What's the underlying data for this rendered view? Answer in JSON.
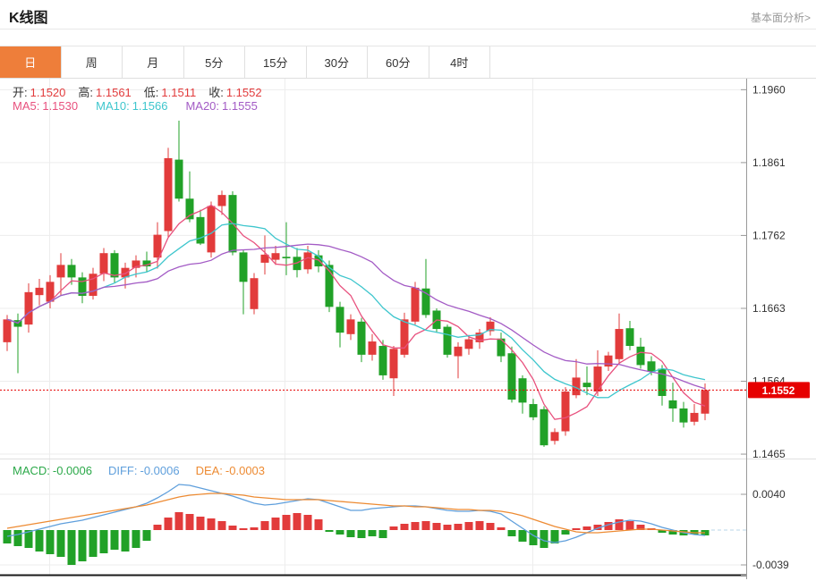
{
  "header": {
    "title": "K线图",
    "link": "基本面分析>"
  },
  "tabs": {
    "items": [
      "日",
      "周",
      "月",
      "5分",
      "15分",
      "30分",
      "60分",
      "4时"
    ],
    "active_index": 0
  },
  "legend": {
    "ohlc": {
      "pairs": [
        {
          "label": "开:",
          "value": "1.1520"
        },
        {
          "label": "高:",
          "value": "1.1561"
        },
        {
          "label": "低:",
          "value": "1.1511"
        },
        {
          "label": "收:",
          "value": "1.1552"
        }
      ]
    },
    "ma": {
      "items": [
        {
          "label": "MA5:",
          "value": "1.1530",
          "color": "#e8517e"
        },
        {
          "label": "MA10:",
          "value": "1.1566",
          "color": "#3ec6cd"
        },
        {
          "label": "MA20:",
          "value": "1.1555",
          "color": "#a35bc5"
        }
      ]
    },
    "macd": {
      "items": [
        {
          "label": "MACD:",
          "value": "-0.0006",
          "color": "#2ca94a"
        },
        {
          "label": "DIFF:",
          "value": "-0.0006",
          "color": "#5f9fdc"
        },
        {
          "label": "DEA:",
          "value": "-0.0003",
          "color": "#ed8b33"
        }
      ]
    }
  },
  "price_axis": {
    "ticks": [
      "1.1960",
      "1.1861",
      "1.1762",
      "1.1663",
      "1.1564",
      "1.1465"
    ],
    "current": "1.1552"
  },
  "macd_axis": {
    "ticks": [
      "0.0040",
      "-0.0039"
    ]
  },
  "colors": {
    "up": "#e23b3b",
    "down": "#21a127",
    "ma5": "#e8517e",
    "ma10": "#3ec6cd",
    "ma20": "#a35bc5",
    "diff": "#5f9fdc",
    "dea": "#ed8b33",
    "accent_tab": "#ee7e3a",
    "price_tag": "#e60000",
    "grid": "#ededed",
    "axis": "#999999",
    "tick_text": "#333333",
    "current_line": "#e60000",
    "zero_dash": "#b9d4ea",
    "bottom_line": "#1a1a1a",
    "ohlc_value": "#e23b3c"
  },
  "chart_data": [
    {
      "type": "candlestick",
      "title": "K线图 (日)",
      "ylim": [
        1.1459,
        1.1975
      ],
      "yticks": [
        1.196,
        1.1861,
        1.1762,
        1.1663,
        1.1564,
        1.1465
      ],
      "current_price": 1.1552,
      "grid": true,
      "ohlc_format": [
        "open",
        "high",
        "low",
        "close"
      ],
      "candles": [
        [
          1.1617,
          1.1654,
          1.1605,
          1.1648
        ],
        [
          1.1647,
          1.1656,
          1.1575,
          1.1638
        ],
        [
          1.1641,
          1.1697,
          1.163,
          1.1685
        ],
        [
          1.1681,
          1.1703,
          1.1667,
          1.1691
        ],
        [
          1.1672,
          1.1708,
          1.1663,
          1.1699
        ],
        [
          1.1705,
          1.1738,
          1.168,
          1.1722
        ],
        [
          1.1722,
          1.173,
          1.1695,
          1.1705
        ],
        [
          1.1705,
          1.1712,
          1.167,
          1.168
        ],
        [
          1.168,
          1.1718,
          1.1675,
          1.171
        ],
        [
          1.171,
          1.1745,
          1.17,
          1.1738
        ],
        [
          1.1738,
          1.1742,
          1.1698,
          1.1705
        ],
        [
          1.1705,
          1.1725,
          1.169,
          1.1718
        ],
        [
          1.1718,
          1.1735,
          1.1705,
          1.1728
        ],
        [
          1.1728,
          1.174,
          1.1712,
          1.172
        ],
        [
          1.1732,
          1.178,
          1.1717,
          1.1763
        ],
        [
          1.1768,
          1.1881,
          1.176,
          1.1867
        ],
        [
          1.1865,
          1.1918,
          1.1808,
          1.1812
        ],
        [
          1.1812,
          1.1849,
          1.178,
          1.1784
        ],
        [
          1.1787,
          1.1797,
          1.1749,
          1.1751
        ],
        [
          1.1739,
          1.1808,
          1.1732,
          1.1802
        ],
        [
          1.1802,
          1.1823,
          1.179,
          1.1817
        ],
        [
          1.1817,
          1.1822,
          1.1735,
          1.1739
        ],
        [
          1.1739,
          1.1742,
          1.1655,
          1.1699
        ],
        [
          1.1662,
          1.1711,
          1.1655,
          1.1704
        ],
        [
          1.1725,
          1.1762,
          1.1709,
          1.1736
        ],
        [
          1.1729,
          1.1748,
          1.1722,
          1.1738
        ],
        [
          1.1733,
          1.178,
          1.1708,
          1.1731
        ],
        [
          1.1733,
          1.1745,
          1.1705,
          1.1715
        ],
        [
          1.1716,
          1.1748,
          1.171,
          1.1739
        ],
        [
          1.1735,
          1.1742,
          1.1712,
          1.172
        ],
        [
          1.1722,
          1.1728,
          1.1658,
          1.1665
        ],
        [
          1.1665,
          1.1672,
          1.161,
          1.163
        ],
        [
          1.1628,
          1.1655,
          1.162,
          1.1648
        ],
        [
          1.1645,
          1.165,
          1.159,
          1.16
        ],
        [
          1.16,
          1.1628,
          1.1592,
          1.1618
        ],
        [
          1.1612,
          1.162,
          1.1566,
          1.1572
        ],
        [
          1.1568,
          1.1612,
          1.1544,
          1.1608
        ],
        [
          1.16,
          1.1657,
          1.1596,
          1.1648
        ],
        [
          1.1645,
          1.1699,
          1.1641,
          1.1691
        ],
        [
          1.169,
          1.173,
          1.165,
          1.1654
        ],
        [
          1.166,
          1.1663,
          1.163,
          1.1635
        ],
        [
          1.1638,
          1.1641,
          1.1596,
          1.16
        ],
        [
          1.1598,
          1.1617,
          1.1568,
          1.1611
        ],
        [
          1.1608,
          1.1627,
          1.16,
          1.1621
        ],
        [
          1.1617,
          1.1635,
          1.1608,
          1.163
        ],
        [
          1.1632,
          1.1651,
          1.1626,
          1.1645
        ],
        [
          1.1622,
          1.163,
          1.159,
          1.1598
        ],
        [
          1.1602,
          1.1611,
          1.1535,
          1.1539
        ],
        [
          1.1568,
          1.1572,
          1.152,
          1.1535
        ],
        [
          1.1533,
          1.154,
          1.1511,
          1.1515
        ],
        [
          1.1526,
          1.153,
          1.1475,
          1.1477
        ],
        [
          1.1483,
          1.15,
          1.1478,
          1.1495
        ],
        [
          1.1496,
          1.1556,
          1.149,
          1.155
        ],
        [
          1.1545,
          1.1594,
          1.1541,
          1.1569
        ],
        [
          1.1562,
          1.1584,
          1.1545,
          1.1556
        ],
        [
          1.155,
          1.1606,
          1.1544,
          1.1584
        ],
        [
          1.1584,
          1.1604,
          1.1578,
          1.1599
        ],
        [
          1.1594,
          1.1656,
          1.1588,
          1.1635
        ],
        [
          1.1636,
          1.1646,
          1.1606,
          1.1612
        ],
        [
          1.1611,
          1.1623,
          1.1581,
          1.1586
        ],
        [
          1.1591,
          1.1598,
          1.1572,
          1.1577
        ],
        [
          1.1581,
          1.1586,
          1.1531,
          1.1544
        ],
        [
          1.1538,
          1.1562,
          1.1509,
          1.1527
        ],
        [
          1.1527,
          1.1536,
          1.1501,
          1.1508
        ],
        [
          1.1509,
          1.1533,
          1.1504,
          1.1521
        ],
        [
          1.152,
          1.1561,
          1.1511,
          1.1552
        ]
      ],
      "ma_windows": [
        5,
        10,
        20
      ]
    },
    {
      "type": "bar+line",
      "name": "MACD",
      "yticks": [
        0.004,
        -0.0039
      ],
      "histogram": [
        -0.0015,
        -0.0018,
        -0.002,
        -0.0024,
        -0.0027,
        -0.003,
        -0.0039,
        -0.0035,
        -0.003,
        -0.0026,
        -0.0022,
        -0.0024,
        -0.002,
        -0.0012,
        0.0006,
        0.0014,
        0.002,
        0.0018,
        0.0015,
        0.0013,
        0.001,
        0.0005,
        0.0002,
        0.0003,
        0.001,
        0.0014,
        0.0017,
        0.0019,
        0.0017,
        0.0012,
        -0.0002,
        -0.0005,
        -0.0008,
        -0.0009,
        -0.0007,
        -0.0009,
        0.0004,
        0.0007,
        0.0009,
        0.001,
        0.0008,
        0.0006,
        0.0007,
        0.0009,
        0.001,
        0.0008,
        0.0003,
        -0.0007,
        -0.0013,
        -0.0017,
        -0.002,
        -0.0015,
        -0.0005,
        0.0002,
        0.0004,
        0.0006,
        0.0009,
        0.0012,
        0.001,
        0.0006,
        0.0002,
        -0.0003,
        -0.0005,
        -0.0006,
        -0.0005,
        -0.0006
      ],
      "diff": [
        -0.0007,
        -0.0005,
        -0.0002,
        0.0001,
        0.0004,
        0.0007,
        0.0009,
        0.0011,
        0.0014,
        0.0017,
        0.002,
        0.0023,
        0.0026,
        0.003,
        0.0036,
        0.0043,
        0.0051,
        0.005,
        0.0047,
        0.0044,
        0.0041,
        0.0038,
        0.0034,
        0.003,
        0.0028,
        0.0029,
        0.0031,
        0.0033,
        0.0035,
        0.0034,
        0.003,
        0.0026,
        0.0022,
        0.0022,
        0.0024,
        0.0025,
        0.0026,
        0.0027,
        0.0027,
        0.0026,
        0.0024,
        0.0022,
        0.0021,
        0.0021,
        0.0022,
        0.0021,
        0.0018,
        0.001,
        0.0002,
        -0.0006,
        -0.0012,
        -0.0014,
        -0.0012,
        -0.0008,
        -0.0003,
        0.0002,
        0.0006,
        0.0009,
        0.0011,
        0.001,
        0.0007,
        0.0003,
        0.0,
        -0.0003,
        -0.0005,
        -0.0006
      ],
      "dea": [
        0.0002,
        0.0004,
        0.0006,
        0.0008,
        0.001,
        0.0012,
        0.0014,
        0.0016,
        0.0018,
        0.002,
        0.0022,
        0.0024,
        0.0026,
        0.0028,
        0.0031,
        0.0034,
        0.0037,
        0.0039,
        0.004,
        0.0041,
        0.0041,
        0.004,
        0.0039,
        0.0037,
        0.0036,
        0.0035,
        0.0034,
        0.0034,
        0.0034,
        0.0034,
        0.0033,
        0.0032,
        0.0031,
        0.003,
        0.0029,
        0.0028,
        0.0027,
        0.0027,
        0.0026,
        0.0026,
        0.0025,
        0.0024,
        0.0023,
        0.0023,
        0.0022,
        0.0022,
        0.0021,
        0.0019,
        0.0016,
        0.0012,
        0.0008,
        0.0004,
        0.0001,
        -0.0002,
        -0.0003,
        -0.0003,
        -0.0002,
        -0.0001,
        0.0,
        0.0001,
        0.0001,
        0.0,
        -0.0001,
        -0.0002,
        -0.0003,
        -0.0003
      ]
    }
  ]
}
